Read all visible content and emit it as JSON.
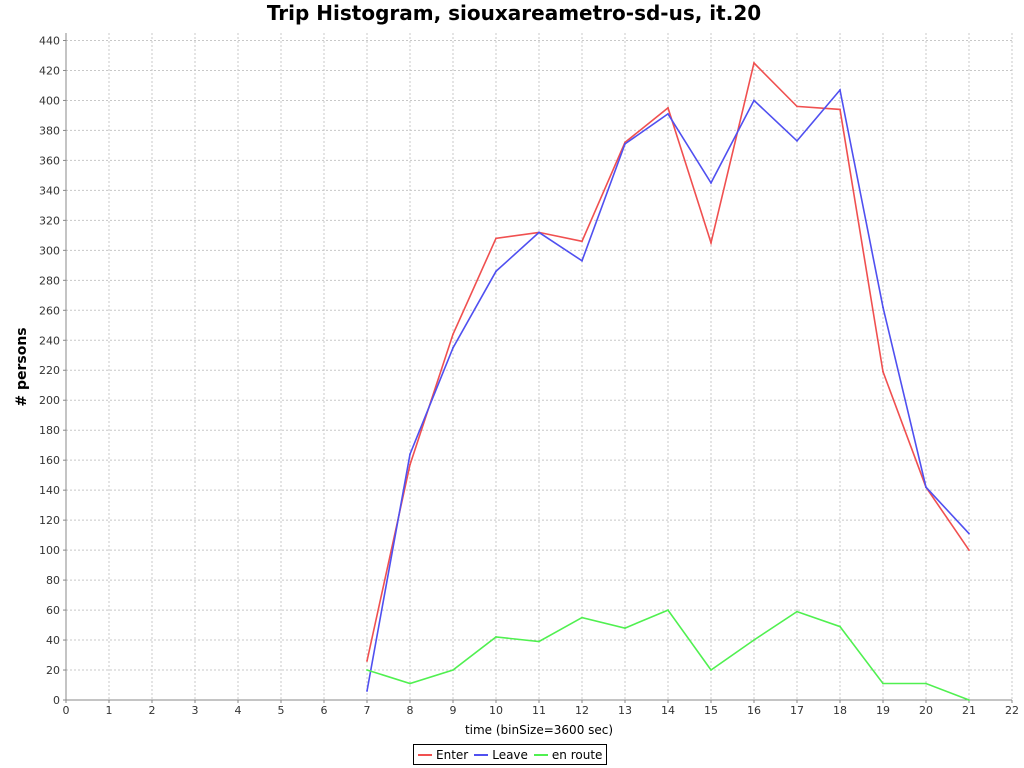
{
  "chart_data": {
    "type": "line",
    "title": "Trip Histogram, siouxareametro-sd-us, it.20",
    "xlabel": "time (binSize=3600 sec)",
    "ylabel": "# persons",
    "xlim": [
      0,
      22
    ],
    "ylim": [
      0,
      445
    ],
    "x_ticks": [
      "0",
      "1",
      "2",
      "3",
      "4",
      "5",
      "6",
      "7",
      "8",
      "9",
      "10",
      "11",
      "12",
      "13",
      "14",
      "15",
      "16",
      "17",
      "18",
      "19",
      "20",
      "21",
      "22"
    ],
    "y_ticks": [
      "0",
      "20",
      "40",
      "60",
      "80",
      "100",
      "120",
      "140",
      "160",
      "180",
      "200",
      "220",
      "240",
      "260",
      "280",
      "300",
      "320",
      "340",
      "360",
      "380",
      "400",
      "420",
      "440"
    ],
    "grid": true,
    "legend_position": "bottom",
    "x": [
      7,
      8,
      9,
      10,
      11,
      12,
      13,
      14,
      15,
      16,
      17,
      18,
      19,
      20,
      21
    ],
    "series": [
      {
        "name": "Enter",
        "color": "#f05050",
        "values": [
          26,
          157,
          244,
          308,
          312,
          306,
          372,
          395,
          305,
          425,
          396,
          394,
          219,
          142,
          100
        ]
      },
      {
        "name": "Leave",
        "color": "#5050f0",
        "values": [
          6,
          164,
          235,
          286,
          312,
          293,
          371,
          391,
          345,
          400,
          373,
          407,
          262,
          142,
          111
        ]
      },
      {
        "name": "en route",
        "color": "#50f050",
        "values": [
          20,
          11,
          20,
          42,
          39,
          55,
          48,
          60,
          20,
          40,
          59,
          49,
          11,
          11,
          0
        ]
      }
    ]
  }
}
